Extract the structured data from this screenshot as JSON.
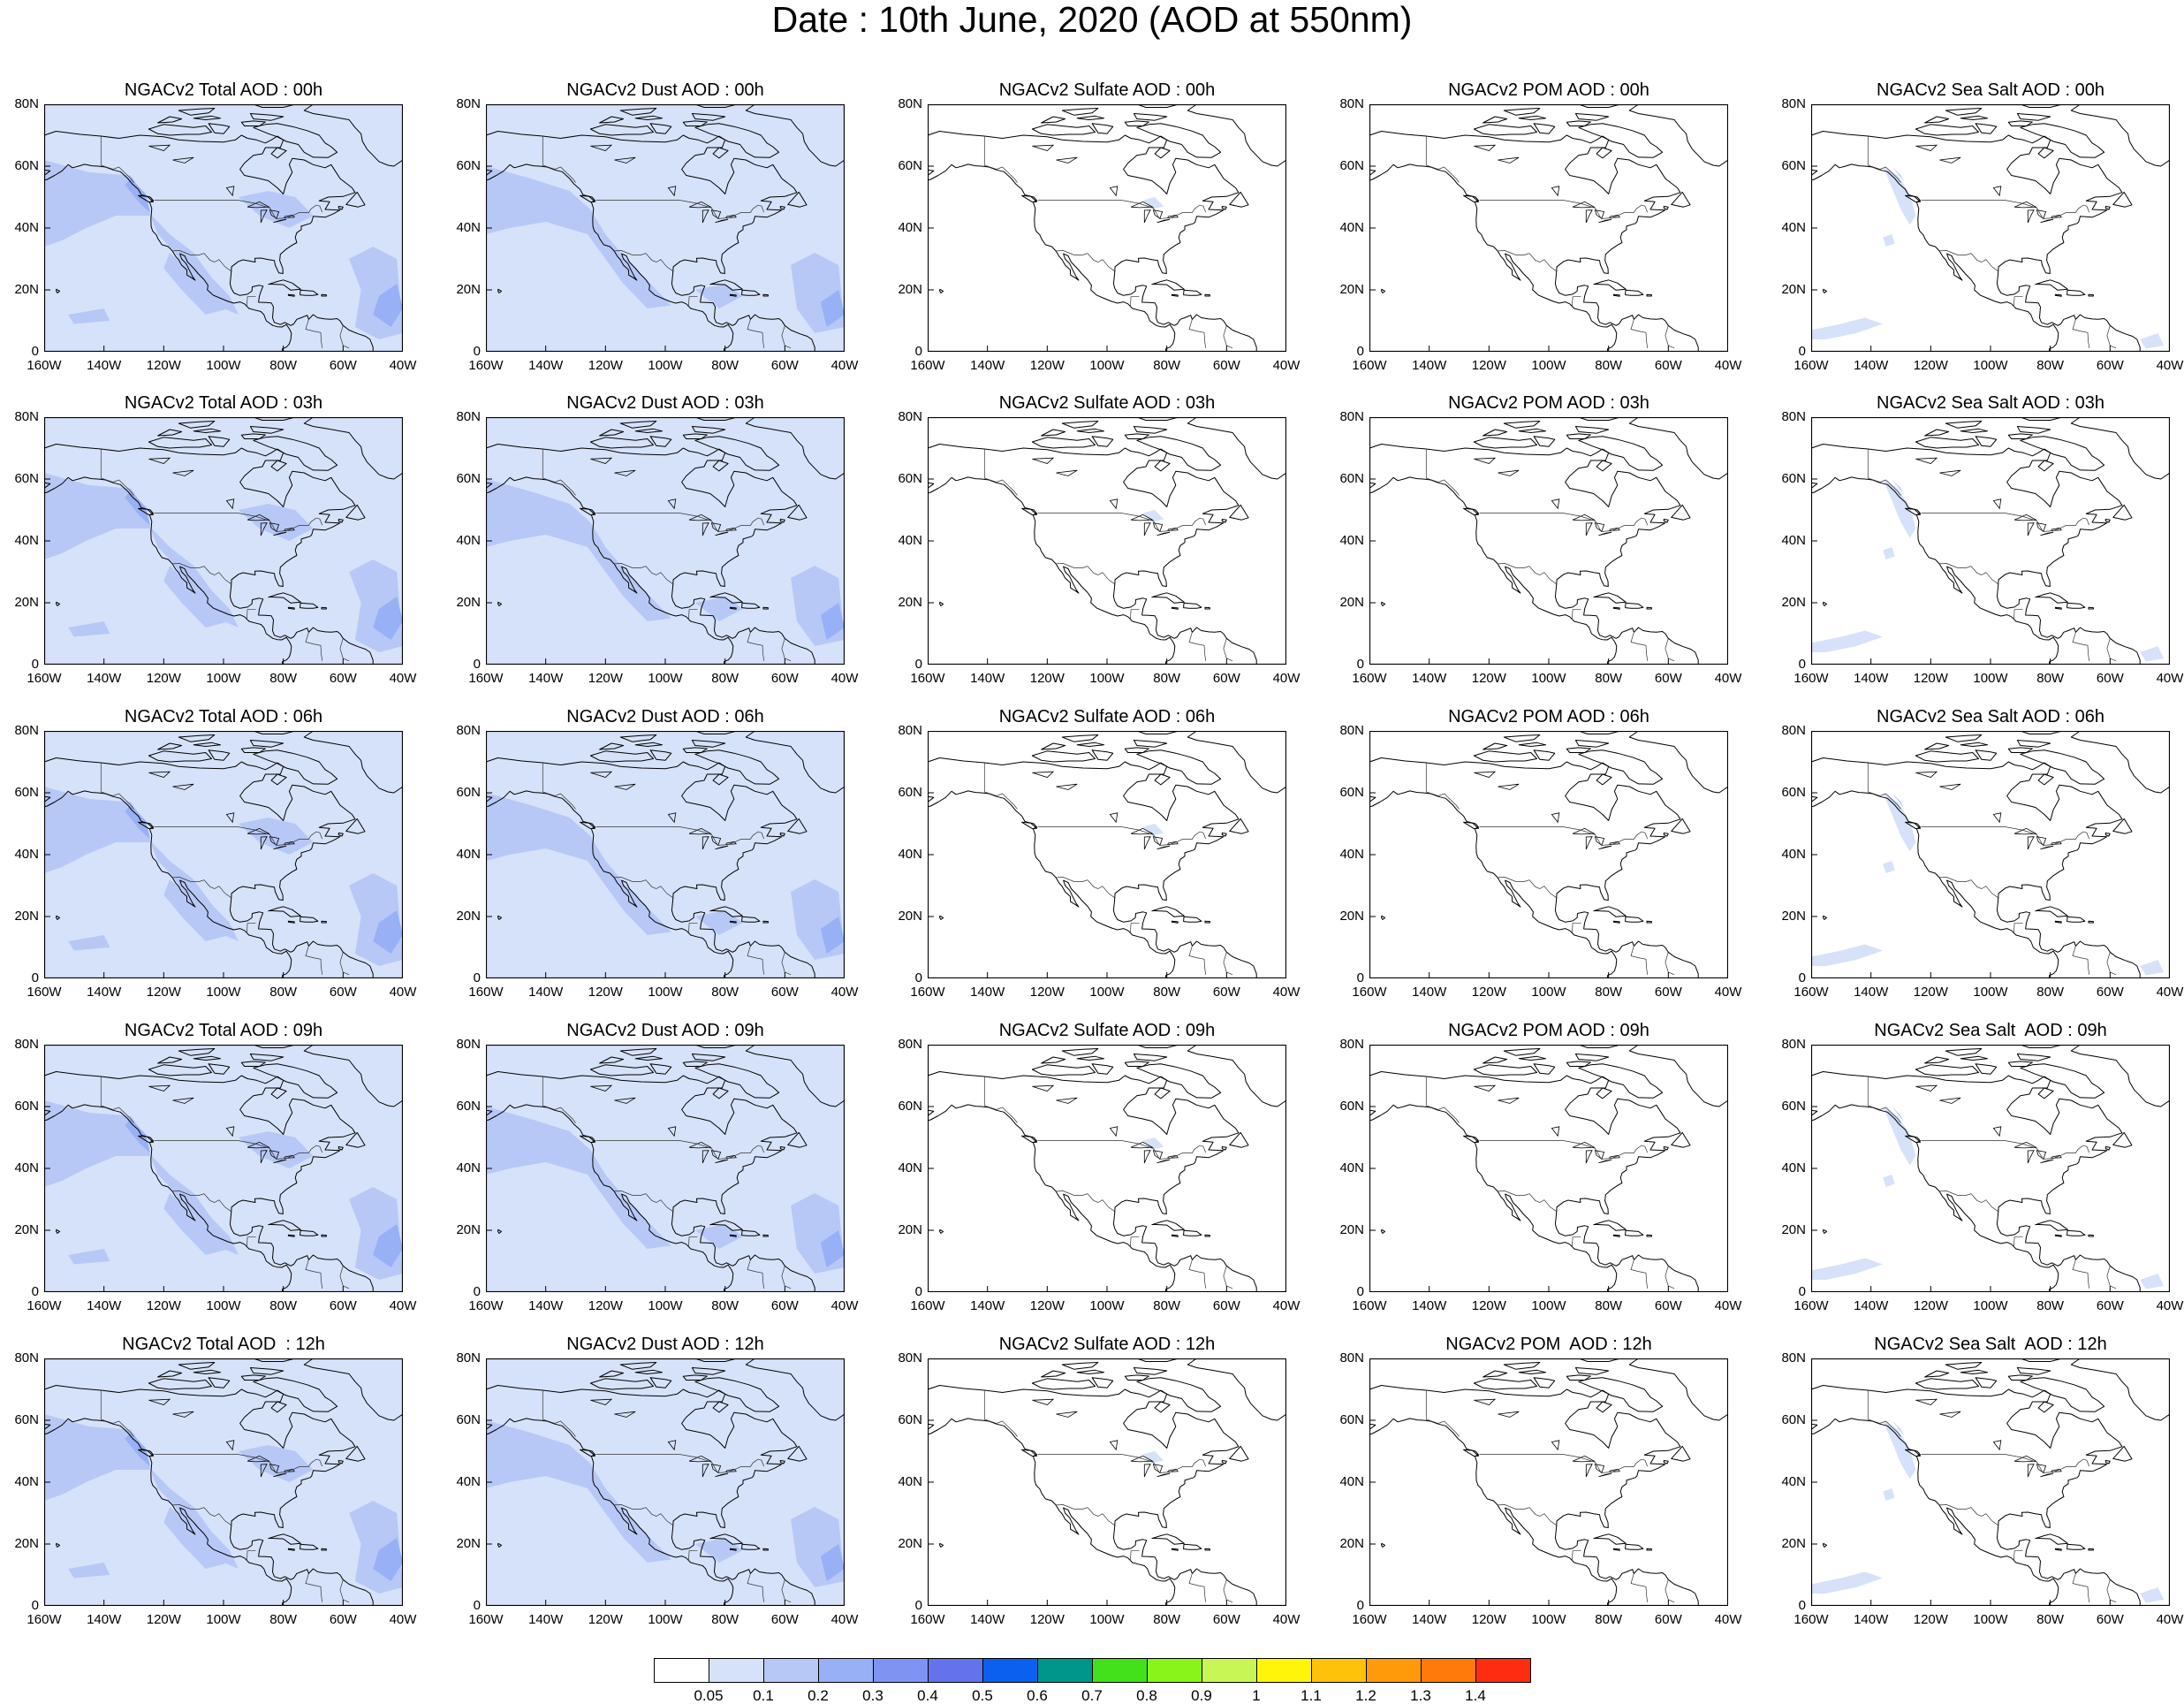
{
  "title": "Date : 10th June, 2020 (AOD at 550nm)",
  "lat_ticks": [
    "80N",
    "60N",
    "40N",
    "20N",
    "0"
  ],
  "lon_ticks": [
    "160W",
    "140W",
    "120W",
    "100W",
    "80W",
    "60W",
    "40W"
  ],
  "panels": [
    [
      {
        "title": "NGACv2 Total AOD : 00h",
        "species": "total"
      },
      {
        "title": "NGACv2 Dust AOD : 00h",
        "species": "dust"
      },
      {
        "title": "NGACv2 Sulfate AOD : 00h",
        "species": "sulfate"
      },
      {
        "title": "NGACv2 POM AOD : 00h",
        "species": "pom"
      },
      {
        "title": "NGACv2 Sea Salt AOD : 00h",
        "species": "seasalt"
      }
    ],
    [
      {
        "title": "NGACv2 Total AOD : 03h",
        "species": "total"
      },
      {
        "title": "NGACv2 Dust AOD : 03h",
        "species": "dust"
      },
      {
        "title": "NGACv2 Sulfate AOD : 03h",
        "species": "sulfate"
      },
      {
        "title": "NGACv2 POM AOD : 03h",
        "species": "pom"
      },
      {
        "title": "NGACv2 Sea Salt AOD : 03h",
        "species": "seasalt"
      }
    ],
    [
      {
        "title": "NGACv2 Total AOD : 06h",
        "species": "total"
      },
      {
        "title": "NGACv2 Dust AOD : 06h",
        "species": "dust"
      },
      {
        "title": "NGACv2 Sulfate AOD : 06h",
        "species": "sulfate"
      },
      {
        "title": "NGACv2 POM AOD : 06h",
        "species": "pom"
      },
      {
        "title": "NGACv2 Sea Salt AOD : 06h",
        "species": "seasalt"
      }
    ],
    [
      {
        "title": "NGACv2 Total AOD : 09h",
        "species": "total"
      },
      {
        "title": "NGACv2 Dust AOD : 09h",
        "species": "dust"
      },
      {
        "title": "NGACv2 Sulfate AOD : 09h",
        "species": "sulfate"
      },
      {
        "title": "NGACv2 POM AOD : 09h",
        "species": "pom"
      },
      {
        "title": "NGACv2 Sea Salt  AOD : 09h",
        "species": "seasalt"
      }
    ],
    [
      {
        "title": "NGACv2 Total AOD  : 12h",
        "species": "total"
      },
      {
        "title": "NGACv2 Dust AOD : 12h",
        "species": "dust"
      },
      {
        "title": "NGACv2 Sulfate AOD : 12h",
        "species": "sulfate"
      },
      {
        "title": "NGACv2 POM  AOD : 12h",
        "species": "pom"
      },
      {
        "title": "NGACv2 Sea Salt  AOD : 12h",
        "species": "seasalt"
      }
    ]
  ],
  "colorbar": {
    "labels": [
      "0.05",
      "0.1",
      "0.2",
      "0.3",
      "0.4",
      "0.5",
      "0.6",
      "0.7",
      "0.8",
      "0.9",
      "1",
      "1.1",
      "1.2",
      "1.3",
      "1.4"
    ],
    "colors": [
      "#ffffff",
      "#d6e2fa",
      "#b7c8f7",
      "#97b0f6",
      "#7f94f2",
      "#6473ec",
      "#0c60f0",
      "#00968c",
      "#42e11c",
      "#88f41a",
      "#c8f755",
      "#fff50a",
      "#ffc20a",
      "#ff9a0a",
      "#ff7a0a",
      "#ff2d10"
    ]
  },
  "shading_colors": {
    "light": "#d6e2fa",
    "medium": "#b7c8f7",
    "dark": "#97b0f6"
  }
}
